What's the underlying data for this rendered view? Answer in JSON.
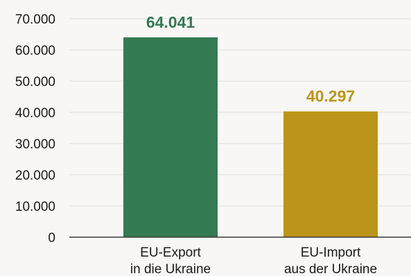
{
  "chart_data": {
    "type": "bar",
    "categories": [
      [
        "EU-Export",
        "in die Ukraine"
      ],
      [
        "EU-Import",
        "aus der Ukraine"
      ]
    ],
    "values": [
      64041,
      40297
    ],
    "value_labels": [
      "64.041",
      "40.297"
    ],
    "bar_colors": [
      "#357a53",
      "#bb9419"
    ],
    "y_ticks": [
      "0",
      "10.000",
      "20.000",
      "30.000",
      "40.000",
      "50.000",
      "60.000",
      "70.000"
    ],
    "ylim": [
      0,
      70000
    ],
    "grid": true,
    "title": "",
    "xlabel": "",
    "ylabel": ""
  }
}
